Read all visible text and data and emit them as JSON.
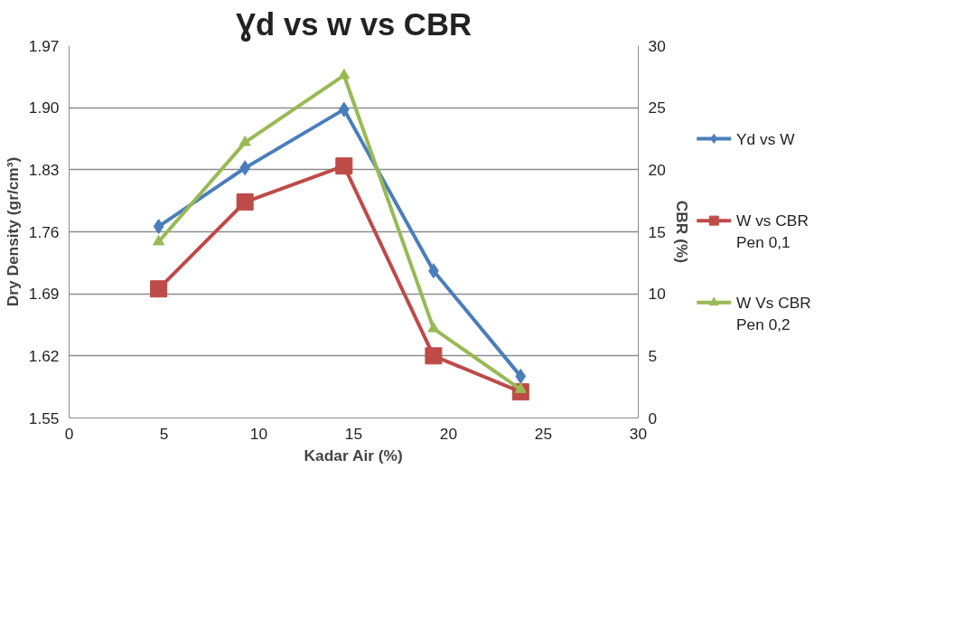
{
  "chart_data": {
    "type": "line",
    "title": "Ɣd vs w vs CBR",
    "xlabel": "Kadar Air (%)",
    "ylabel": "Dry Density (gr/cm³)",
    "y2label": "CBR (%)",
    "xlim": [
      0,
      30
    ],
    "xticks": [
      0,
      5,
      10,
      15,
      20,
      25,
      30
    ],
    "ylim": [
      1.55,
      1.97
    ],
    "yticks": [
      1.55,
      1.62,
      1.69,
      1.76,
      1.83,
      {
        "value": 1.9,
        "label": "1.90"
      },
      1.97
    ],
    "y2lim": [
      0,
      30
    ],
    "y2ticks": [
      0,
      5,
      10,
      15,
      20,
      25,
      30
    ],
    "grid": "y",
    "legend": "right",
    "line_style": "solid",
    "series": [
      {
        "name": "Yd vs W",
        "color": "#4a7ebb",
        "marker": "diamond",
        "x": [
          4.72,
          9.27,
          14.49,
          19.21,
          23.8
        ],
        "values": [
          1.766,
          1.832,
          1.898,
          1.716,
          1.597
        ]
      },
      {
        "name": "W vs CBR\nPen 0,1",
        "color": "#be4b48",
        "marker": "square",
        "axis": "y2",
        "x": [
          4.72,
          9.27,
          14.49,
          19.21,
          23.8
        ],
        "values": [
          10.4,
          17.4,
          20.3,
          5.0,
          2.1
        ]
      },
      {
        "name": "W Vs CBR\nPen 0,2",
        "color": "#98b954",
        "marker": "triangle",
        "axis": "y2",
        "x": [
          4.72,
          9.27,
          14.49,
          19.21,
          23.8
        ],
        "values": [
          14.2,
          22.2,
          27.6,
          7.2,
          2.3
        ]
      }
    ]
  }
}
